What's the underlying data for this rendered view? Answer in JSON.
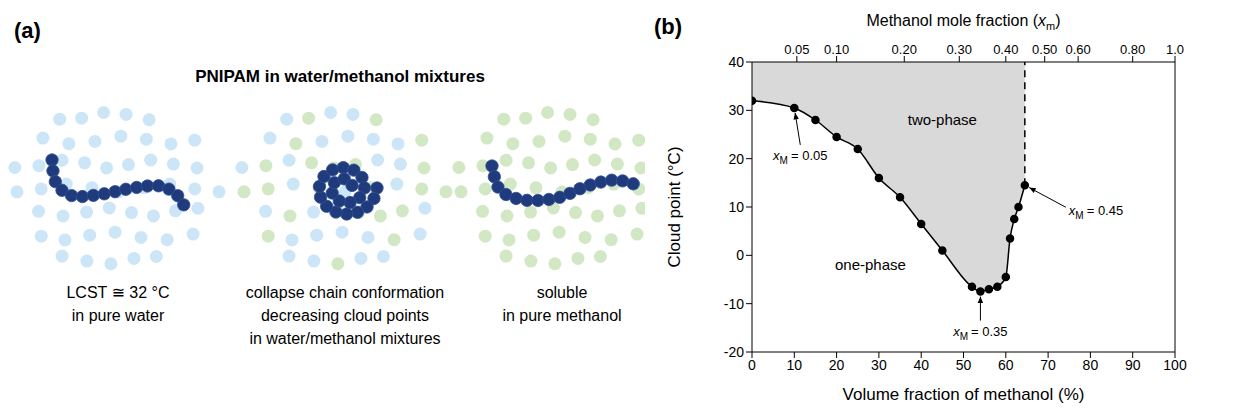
{
  "panel_a": {
    "label": "(a)",
    "title": "PNIPAM in water/methanol mixtures",
    "states": [
      {
        "caption": [
          "LCST ≅ 32 °C",
          "in pure water"
        ]
      },
      {
        "caption": [
          "collapse chain conformation",
          "decreasing cloud points",
          "in water/methanol mixtures"
        ]
      },
      {
        "caption": [
          "soluble",
          "in pure methanol"
        ]
      }
    ]
  },
  "chart_data": {
    "type": "line",
    "panel_label": "(b)",
    "x_label": "Volume fraction of methanol (%)",
    "y_label": "Cloud point (°C)",
    "x2_label": {
      "text": "Methanol mole fraction (",
      "symbol": "x",
      "subscript": "m",
      "end": ")"
    },
    "x": [
      0,
      10,
      15,
      20,
      25,
      30,
      35,
      40,
      45,
      52,
      54,
      56,
      58,
      60,
      61,
      62,
      63,
      64.5
    ],
    "values": [
      32,
      30.5,
      28,
      24.5,
      22,
      16,
      12,
      6.5,
      1,
      -6.5,
      -7.5,
      -7,
      -6.5,
      -4.5,
      3.5,
      7.5,
      10,
      14.5
    ],
    "color": "#000000",
    "marker": "circle",
    "line_style": "solid",
    "boundary": {
      "x": [
        64.5,
        64.5
      ],
      "values": [
        14.5,
        40
      ],
      "color": "#000000",
      "line_style": "dashed"
    },
    "regions": [
      {
        "label": "two-phase",
        "x": 45,
        "y": 27,
        "color": "#d9d9d9"
      },
      {
        "label": "one-phase",
        "x": 28,
        "y": -3
      }
    ],
    "annotations": [
      {
        "symbol": "x",
        "subscript": "M",
        "text": "= 0.05",
        "x": 10,
        "y": 30.5
      },
      {
        "symbol": "x",
        "subscript": "M",
        "text": "= 0.35",
        "x": 54,
        "y": -7.5
      },
      {
        "symbol": "x",
        "subscript": "M",
        "text": "= 0.45",
        "x": 64.5,
        "y": 14.5
      }
    ],
    "xlim": [
      0,
      100
    ],
    "xticks": [
      0,
      10,
      20,
      30,
      40,
      50,
      60,
      70,
      80,
      90,
      100
    ],
    "x2ticks": [
      {
        "value": 10.6,
        "label": "0.05"
      },
      {
        "value": 20,
        "label": "0.10"
      },
      {
        "value": 36,
        "label": "0.20"
      },
      {
        "value": 49,
        "label": "0.30"
      },
      {
        "value": 60,
        "label": "0.40"
      },
      {
        "value": 69.2,
        "label": "0.50"
      },
      {
        "value": 77.1,
        "label": "0.60"
      },
      {
        "value": 90,
        "label": "0.80"
      },
      {
        "value": 100,
        "label": "1.0"
      }
    ],
    "ylim": [
      -20,
      40
    ],
    "yticks": [
      -20,
      -10,
      0,
      10,
      20,
      30,
      40
    ],
    "grid": false
  }
}
